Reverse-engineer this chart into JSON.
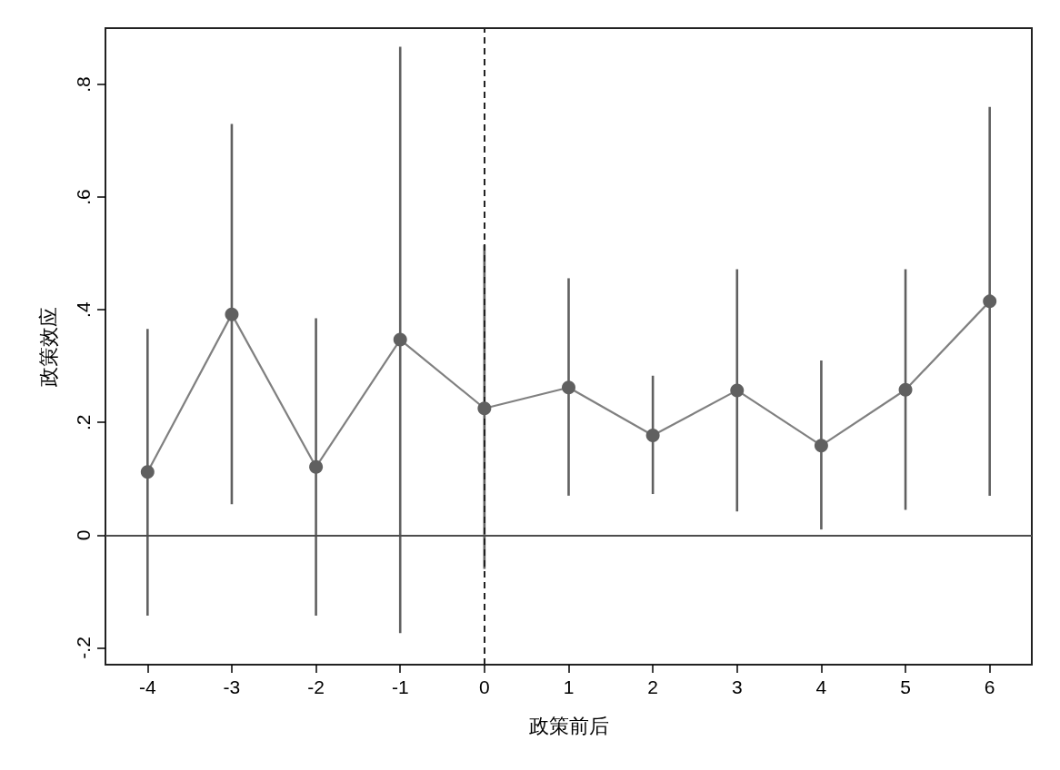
{
  "chart_data": {
    "type": "line",
    "xlabel": "政策前后",
    "ylabel": "政策效应",
    "x": [
      -4,
      -3,
      -2,
      -1,
      0,
      1,
      2,
      3,
      4,
      5,
      6
    ],
    "values": [
      0.112,
      0.392,
      0.121,
      0.347,
      0.225,
      0.262,
      0.177,
      0.257,
      0.159,
      0.258,
      0.415
    ],
    "errors": [
      [
        -0.143,
        0.366
      ],
      [
        0.055,
        0.73
      ],
      [
        -0.143,
        0.385
      ],
      [
        -0.174,
        0.867
      ],
      [
        -0.06,
        0.515
      ],
      [
        0.07,
        0.456
      ],
      [
        0.073,
        0.283
      ],
      [
        0.042,
        0.472
      ],
      [
        0.01,
        0.31
      ],
      [
        0.045,
        0.472
      ],
      [
        0.07,
        0.76
      ]
    ],
    "color": "#606060",
    "marker": "circle",
    "line_style": "solid",
    "xlim": [
      -4.5,
      6.5
    ],
    "xticks": [
      -4,
      -3,
      -2,
      -1,
      0,
      1,
      2,
      3,
      4,
      5,
      6
    ],
    "ylim": [
      -0.23,
      0.9
    ],
    "yticks": [
      {
        "value": -0.2,
        "label": "-.2"
      },
      0,
      {
        "value": 0.2,
        "label": ".2"
      },
      {
        "value": 0.4,
        "label": ".4"
      },
      {
        "value": 0.6,
        "label": ".6"
      },
      {
        "value": 0.8,
        "label": ".8"
      }
    ],
    "grid": false,
    "ref_lines": [
      {
        "axis": "y",
        "value": 0,
        "color": "#4d4d4d",
        "line_style": "solid"
      },
      {
        "axis": "x",
        "value": 0,
        "color": "#222222",
        "line_style": "dashed"
      }
    ]
  }
}
